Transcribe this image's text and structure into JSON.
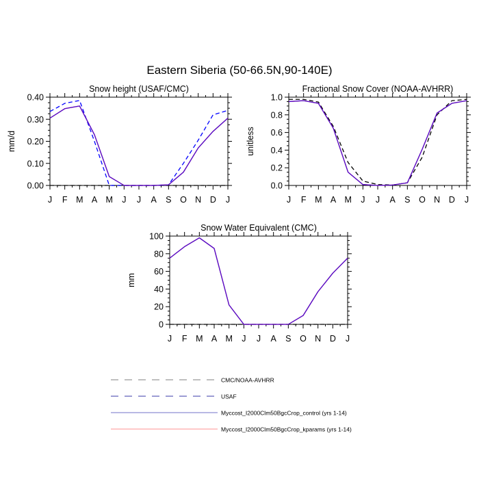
{
  "figure": {
    "title": "Eastern Siberia (50-66.5N,90-140E)"
  },
  "chart_data": [
    {
      "type": "line",
      "title": "Snow height (USAF/CMC)",
      "xlabel": "",
      "ylabel": "mm/d",
      "categories": [
        "J",
        "F",
        "M",
        "A",
        "M",
        "J",
        "J",
        "A",
        "S",
        "O",
        "N",
        "D",
        "J"
      ],
      "ylim": [
        0,
        0.4
      ],
      "yticks": [
        0.0,
        0.1,
        0.2,
        0.3,
        0.4
      ],
      "ytick_labels": [
        "0.00",
        "0.10",
        "0.20",
        "0.30",
        "0.40"
      ],
      "series": [
        {
          "name": "CMC/NOAA-AVHRR",
          "color": "#000000",
          "dash": true,
          "values": [
            0,
            0,
            0,
            0,
            0,
            0,
            0,
            0,
            0,
            0,
            0,
            0,
            0
          ]
        },
        {
          "name": "USAF",
          "color": "#0000ff",
          "dash": true,
          "values": [
            0.335,
            0.372,
            0.385,
            0.2,
            0.0,
            0.0,
            0.0,
            0.0,
            0.003,
            0.1,
            0.205,
            0.32,
            0.34
          ]
        },
        {
          "name": "Myccost_I2000Clm50BgcCrop_kparams (yrs 1-14)",
          "color": "#ff0000",
          "dash": false,
          "values": [
            0.305,
            0.348,
            0.36,
            0.23,
            0.04,
            0.0,
            0.0,
            0.0,
            0.003,
            0.06,
            0.17,
            0.245,
            0.305
          ]
        },
        {
          "name": "Myccost_I2000Clm50BgcCrop_control (yrs 1-14)",
          "color": "#4b0fd6",
          "dash": false,
          "values": [
            0.305,
            0.348,
            0.36,
            0.23,
            0.04,
            0.0,
            0.0,
            0.0,
            0.003,
            0.06,
            0.17,
            0.245,
            0.305
          ]
        }
      ]
    },
    {
      "type": "line",
      "title": "Fractional Snow Cover (NOAA-AVHRR)",
      "xlabel": "",
      "ylabel": "unitless",
      "categories": [
        "J",
        "F",
        "M",
        "A",
        "M",
        "J",
        "J",
        "A",
        "S",
        "O",
        "N",
        "D",
        "J"
      ],
      "ylim": [
        0,
        1
      ],
      "yticks": [
        0.0,
        0.2,
        0.4,
        0.6,
        0.8,
        1.0
      ],
      "ytick_labels": [
        "0.0",
        "0.2",
        "0.4",
        "0.6",
        "0.8",
        "1.0"
      ],
      "series": [
        {
          "name": "CMC/NOAA-AVHRR",
          "color": "#000000",
          "dash": true,
          "values": [
            0.975,
            0.975,
            0.945,
            0.67,
            0.26,
            0.05,
            0.01,
            0.005,
            0.03,
            0.32,
            0.8,
            0.96,
            0.975
          ]
        },
        {
          "name": "Myccost_I2000Clm50BgcCrop_kparams (yrs 1-14)",
          "color": "#ff0000",
          "dash": false,
          "values": [
            0.95,
            0.96,
            0.93,
            0.65,
            0.15,
            0.01,
            0.0,
            0.005,
            0.03,
            0.41,
            0.82,
            0.93,
            0.96
          ]
        },
        {
          "name": "Myccost_I2000Clm50BgcCrop_control (yrs 1-14)",
          "color": "#4b0fd6",
          "dash": false,
          "values": [
            0.95,
            0.96,
            0.93,
            0.65,
            0.15,
            0.01,
            0.0,
            0.005,
            0.03,
            0.41,
            0.82,
            0.93,
            0.96
          ]
        }
      ]
    },
    {
      "type": "line",
      "title": "Snow Water Equivalent (CMC)",
      "xlabel": "",
      "ylabel": "mm",
      "categories": [
        "J",
        "F",
        "M",
        "A",
        "M",
        "J",
        "J",
        "A",
        "S",
        "O",
        "N",
        "D",
        "J"
      ],
      "ylim": [
        0,
        100
      ],
      "yticks": [
        0,
        20,
        40,
        60,
        80,
        100
      ],
      "ytick_labels": [
        "0",
        "20",
        "40",
        "60",
        "80",
        "100"
      ],
      "series": [
        {
          "name": "CMC/NOAA-AVHRR",
          "color": "#000000",
          "dash": true,
          "values": [
            0,
            0,
            0,
            0,
            0,
            0,
            0,
            0,
            0,
            0,
            0,
            0,
            0
          ]
        },
        {
          "name": "Myccost_I2000Clm50BgcCrop_kparams (yrs 1-14)",
          "color": "#ff0000",
          "dash": false,
          "values": [
            75,
            88,
            98,
            86,
            22,
            0,
            0,
            0,
            0,
            10,
            37,
            58,
            75
          ]
        },
        {
          "name": "Myccost_I2000Clm50BgcCrop_control (yrs 1-14)",
          "color": "#4b0fd6",
          "dash": false,
          "values": [
            75,
            88,
            98,
            86,
            22,
            0,
            0,
            0,
            0,
            10,
            37,
            58,
            75
          ]
        }
      ]
    }
  ],
  "legend": {
    "placement": "bottom-center",
    "items": [
      {
        "label": "CMC/NOAA-AVHRR",
        "color": "#7f7f7f",
        "dash": true
      },
      {
        "label": "USAF",
        "color": "#3a3aa8",
        "dash": true
      },
      {
        "label": "Myccost_I2000Clm50BgcCrop_control (yrs 1-14)",
        "color": "#7070c8",
        "dash": false
      },
      {
        "label": "Myccost_I2000Clm50BgcCrop_kparams (yrs 1-14)",
        "color": "#ff9090",
        "dash": false
      }
    ]
  }
}
